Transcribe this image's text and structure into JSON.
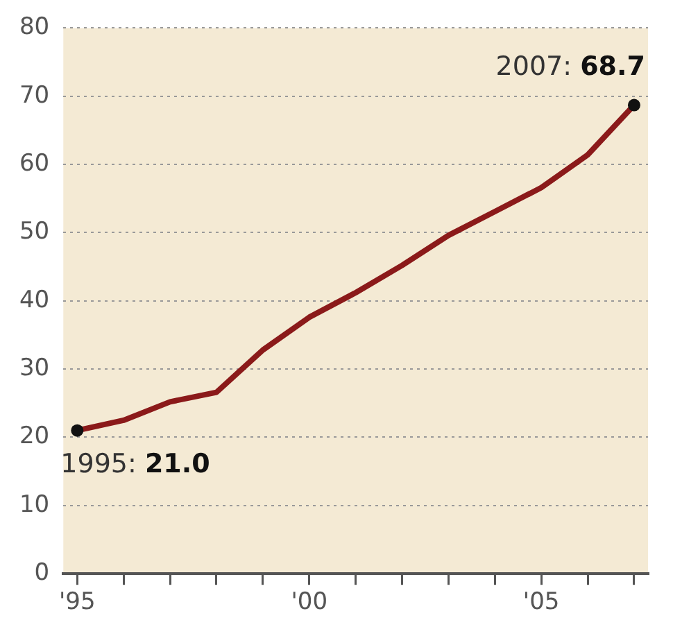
{
  "chart_data": {
    "type": "line",
    "x": [
      1995,
      1996,
      1997,
      1998,
      1999,
      2000,
      2001,
      2002,
      2003,
      2004,
      2005,
      2006,
      2007
    ],
    "series": [
      {
        "color": "#8b1a1a",
        "values": [
          21.0,
          22.5,
          25.2,
          26.6,
          32.8,
          37.6,
          41.2,
          45.2,
          49.6,
          53.1,
          56.6,
          61.4,
          68.7
        ]
      }
    ],
    "xlim": [
      1994.7,
      2007.3
    ],
    "xticks": [
      {
        "value": 1995,
        "label": "'95"
      },
      {
        "value": 1996,
        "label": null
      },
      {
        "value": 1997,
        "label": null
      },
      {
        "value": 1998,
        "label": null
      },
      {
        "value": 1999,
        "label": null
      },
      {
        "value": 2000,
        "label": "'00"
      },
      {
        "value": 2001,
        "label": null
      },
      {
        "value": 2002,
        "label": null
      },
      {
        "value": 2003,
        "label": null
      },
      {
        "value": 2004,
        "label": null
      },
      {
        "value": 2005,
        "label": "'05"
      },
      {
        "value": 2006,
        "label": null
      },
      {
        "value": 2007,
        "label": null
      }
    ],
    "ylim": [
      0,
      80
    ],
    "yticks": [
      0,
      10,
      20,
      30,
      40,
      50,
      60,
      70,
      80
    ],
    "grid": "y",
    "legend": false,
    "marker": "none",
    "line_style": "solid",
    "annotations": [
      {
        "text": "1995: 21.0",
        "x": 1995,
        "y": 21.0
      },
      {
        "text": "2007: 68.7",
        "x": 2007,
        "y": 68.7
      }
    ]
  }
}
